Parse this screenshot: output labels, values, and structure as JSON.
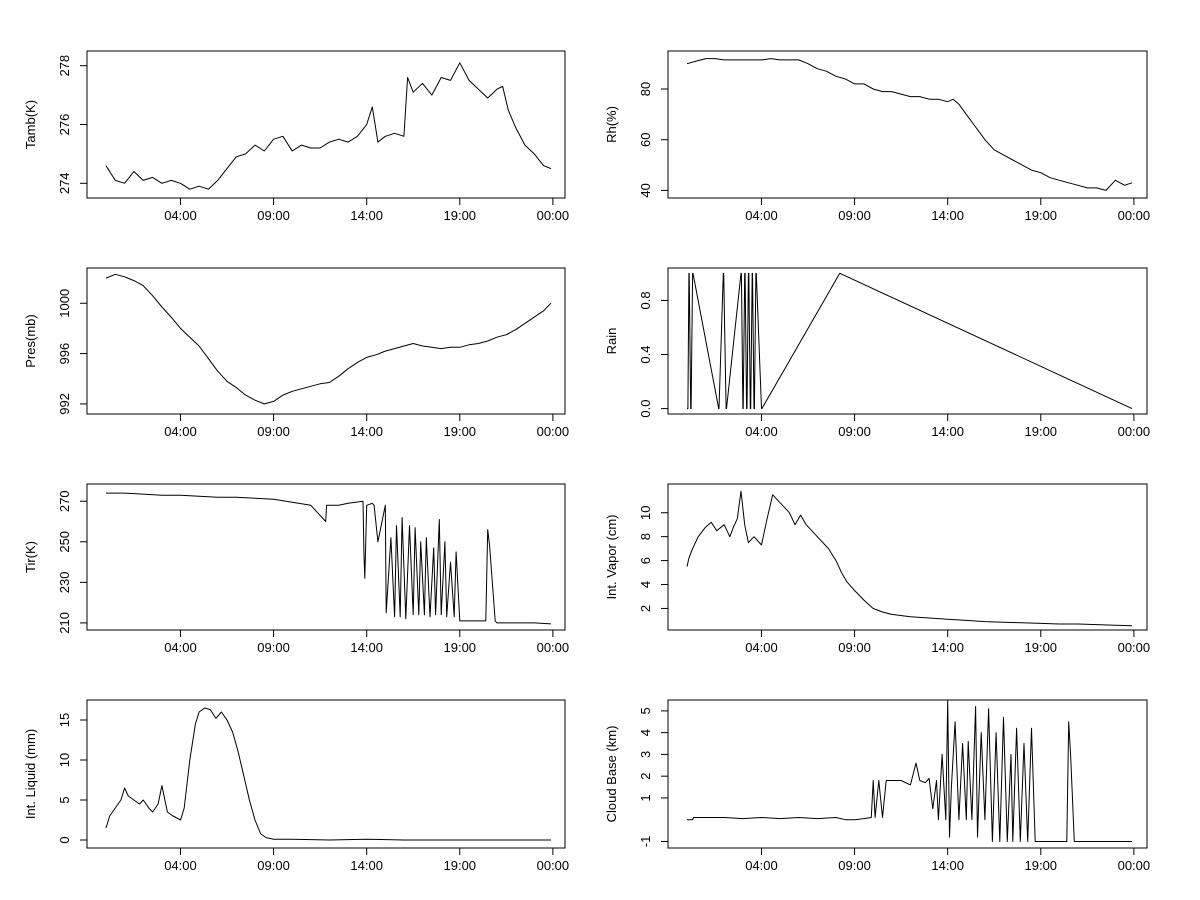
{
  "chart_data": [
    {
      "type": "line",
      "ylabel": "Tamb(K)",
      "xticks": [
        "04:00",
        "09:00",
        "14:00",
        "19:00",
        "00:00"
      ],
      "yticks": [
        274,
        276,
        278
      ],
      "ylim": [
        273.5,
        278.5
      ],
      "x": [
        0.0,
        0.5,
        1.0,
        1.5,
        2.0,
        2.5,
        3.0,
        3.5,
        4.0,
        4.5,
        5.0,
        5.5,
        6.0,
        6.5,
        7.0,
        7.5,
        8.0,
        8.5,
        9.0,
        9.5,
        10.0,
        10.5,
        11.0,
        11.5,
        12.0,
        12.5,
        13.0,
        13.5,
        14.0,
        14.3,
        14.6,
        15.0,
        15.5,
        16.0,
        16.2,
        16.5,
        17.0,
        17.5,
        18.0,
        18.5,
        19.0,
        19.5,
        20.0,
        20.5,
        21.0,
        21.3,
        21.6,
        22.0,
        22.5,
        23.0,
        23.5,
        23.9
      ],
      "values": [
        274.6,
        274.1,
        274.0,
        274.4,
        274.1,
        274.2,
        274.0,
        274.1,
        274.0,
        273.8,
        273.9,
        273.8,
        274.1,
        274.5,
        274.9,
        275.0,
        275.3,
        275.1,
        275.5,
        275.6,
        275.1,
        275.3,
        275.2,
        275.2,
        275.4,
        275.5,
        275.4,
        275.6,
        276.0,
        276.6,
        275.4,
        275.6,
        275.7,
        275.6,
        277.6,
        277.1,
        277.4,
        277.0,
        277.6,
        277.5,
        278.1,
        277.5,
        277.2,
        276.9,
        277.2,
        277.3,
        276.5,
        275.9,
        275.3,
        275.0,
        274.6,
        274.5
      ]
    },
    {
      "type": "line",
      "ylabel": "Rh(%)",
      "xticks": [
        "04:00",
        "09:00",
        "14:00",
        "19:00",
        "00:00"
      ],
      "yticks": [
        40,
        60,
        80
      ],
      "ylim": [
        37,
        95
      ],
      "x": [
        0.0,
        0.5,
        1.0,
        1.5,
        2.0,
        3.0,
        4.0,
        4.5,
        5.0,
        6.0,
        6.5,
        7.0,
        7.5,
        8.0,
        8.5,
        9.0,
        9.5,
        10.0,
        10.5,
        11.0,
        11.5,
        12.0,
        12.5,
        13.0,
        13.5,
        14.0,
        14.3,
        14.6,
        15.0,
        15.5,
        16.0,
        16.5,
        17.0,
        17.5,
        18.0,
        18.5,
        19.0,
        19.5,
        20.0,
        20.5,
        21.0,
        21.5,
        22.0,
        22.5,
        23.0,
        23.5,
        23.9
      ],
      "values": [
        90,
        91,
        92,
        92,
        91.5,
        91.5,
        91.5,
        92,
        91.5,
        91.5,
        90,
        88,
        87,
        85,
        84,
        82,
        82,
        80,
        79,
        79,
        78,
        77,
        77,
        76,
        76,
        75,
        76,
        74,
        70,
        65,
        60,
        56,
        54,
        52,
        50,
        48,
        47,
        45,
        44,
        43,
        42,
        41,
        41,
        40,
        44,
        42,
        43
      ]
    },
    {
      "type": "line",
      "ylabel": "Pres(mb)",
      "xticks": [
        "04:00",
        "09:00",
        "14:00",
        "19:00",
        "00:00"
      ],
      "yticks": [
        992,
        996,
        1000
      ],
      "ylim": [
        991.2,
        1002.8
      ],
      "x": [
        0.0,
        0.5,
        1.0,
        1.5,
        2.0,
        2.5,
        3.0,
        3.5,
        4.0,
        4.5,
        5.0,
        5.5,
        6.0,
        6.5,
        7.0,
        7.5,
        8.0,
        8.5,
        9.0,
        9.5,
        10.0,
        10.5,
        11.0,
        11.5,
        12.0,
        12.5,
        13.0,
        13.5,
        14.0,
        14.5,
        15.0,
        15.5,
        16.0,
        16.5,
        17.0,
        17.5,
        18.0,
        18.5,
        19.0,
        19.5,
        20.0,
        20.5,
        21.0,
        21.5,
        22.0,
        22.5,
        23.0,
        23.5,
        23.9
      ],
      "values": [
        1002.0,
        1002.3,
        1002.1,
        1001.8,
        1001.4,
        1000.6,
        999.7,
        998.9,
        998.0,
        997.3,
        996.6,
        995.6,
        994.6,
        993.8,
        993.3,
        992.7,
        992.3,
        992.0,
        992.2,
        992.7,
        993.0,
        993.2,
        993.4,
        993.6,
        993.7,
        994.2,
        994.8,
        995.3,
        995.7,
        995.9,
        996.2,
        996.4,
        996.6,
        996.8,
        996.6,
        996.5,
        996.4,
        996.5,
        996.5,
        996.7,
        996.8,
        997.0,
        997.3,
        997.5,
        997.9,
        998.4,
        998.9,
        999.4,
        1000.0
      ]
    },
    {
      "type": "line",
      "ylabel": "Rain",
      "xticks": [
        "04:00",
        "09:00",
        "14:00",
        "19:00",
        "00:00"
      ],
      "yticks": [
        0.0,
        0.4,
        0.8
      ],
      "yticklabels": [
        "0.0",
        "0.4",
        "0.8"
      ],
      "ylim": [
        -0.04,
        1.04
      ],
      "step": true,
      "x": [
        0.0,
        0.05,
        0.1,
        0.12,
        0.2,
        0.22,
        0.3,
        0.32,
        1.7,
        1.72,
        1.95,
        1.97,
        2.1,
        2.12,
        2.9,
        2.92,
        3.0,
        3.02,
        3.1,
        3.12,
        3.2,
        3.22,
        3.3,
        3.32,
        3.4,
        3.42,
        3.5,
        3.52,
        3.6,
        3.62,
        3.7,
        3.72,
        4.0,
        4.02,
        8.2,
        8.22,
        23.9
      ],
      "values": [
        0,
        0,
        1,
        1,
        0,
        0,
        1,
        1,
        0,
        0,
        1,
        1,
        0,
        0,
        1,
        1,
        0,
        0,
        1,
        1,
        0,
        0,
        1,
        1,
        0,
        0,
        1,
        1,
        0,
        0,
        1,
        1,
        0,
        0,
        1,
        1,
        0
      ]
    },
    {
      "type": "line",
      "ylabel": "Tir(K)",
      "xticks": [
        "04:00",
        "09:00",
        "14:00",
        "19:00",
        "00:00"
      ],
      "yticks": [
        210,
        230,
        250,
        270
      ],
      "ylim": [
        206.5,
        278.5
      ],
      "x": [
        0.0,
        1.0,
        2.0,
        3.0,
        4.0,
        5.0,
        6.0,
        7.0,
        8.0,
        9.0,
        10.0,
        11.0,
        11.8,
        11.85,
        11.9,
        12.5,
        13.0,
        13.8,
        13.85,
        13.9,
        14.0,
        14.3,
        14.4,
        14.6,
        15.0,
        15.05,
        15.3,
        15.5,
        15.6,
        15.8,
        15.9,
        16.1,
        16.3,
        16.5,
        16.6,
        16.8,
        16.9,
        17.1,
        17.2,
        17.4,
        17.6,
        17.7,
        17.9,
        18.0,
        18.2,
        18.3,
        18.5,
        18.7,
        18.8,
        19.0,
        19.2,
        19.5,
        20.0,
        20.4,
        20.5,
        20.6,
        20.9,
        21.0,
        22.0,
        23.0,
        23.9
      ],
      "values": [
        274,
        274,
        273.5,
        273,
        273,
        272.5,
        272,
        272,
        271.5,
        271,
        269.5,
        268,
        260,
        268,
        268,
        268,
        269,
        270,
        245,
        232,
        268,
        269,
        268,
        250,
        268,
        215,
        252,
        213,
        258,
        213,
        262,
        212,
        258,
        214,
        257,
        214,
        250,
        214,
        252,
        213,
        247,
        214,
        261,
        214,
        250,
        213,
        240,
        213,
        245,
        211,
        211,
        211,
        211,
        211,
        256,
        248,
        211,
        210,
        210,
        210,
        209.5
      ]
    },
    {
      "type": "line",
      "ylabel": "Int. Vapor (cm)",
      "xticks": [
        "04:00",
        "09:00",
        "14:00",
        "19:00",
        "00:00"
      ],
      "yticks": [
        2,
        4,
        6,
        8,
        10
      ],
      "ylim": [
        0.2,
        12.4
      ],
      "x": [
        0.0,
        0.1,
        0.3,
        0.6,
        1.0,
        1.3,
        1.6,
        2.0,
        2.3,
        2.5,
        2.7,
        2.9,
        3.1,
        3.3,
        3.6,
        4.0,
        4.3,
        4.6,
        4.9,
        5.2,
        5.5,
        5.8,
        6.1,
        6.4,
        6.7,
        7.0,
        7.3,
        7.6,
        8.0,
        8.3,
        8.6,
        9.0,
        9.5,
        10.0,
        10.5,
        11.0,
        12.0,
        13.0,
        14.0,
        15.0,
        16.0,
        17.0,
        18.0,
        19.0,
        20.0,
        21.0,
        22.0,
        23.0,
        23.9
      ],
      "values": [
        5.5,
        6.2,
        7.0,
        8.0,
        8.8,
        9.2,
        8.5,
        9.0,
        8.0,
        8.8,
        9.5,
        11.8,
        9.0,
        7.5,
        8.0,
        7.3,
        9.5,
        11.5,
        11.0,
        10.5,
        10.0,
        9.0,
        9.8,
        9.0,
        8.5,
        8.0,
        7.5,
        7.0,
        6.0,
        5.0,
        4.2,
        3.5,
        2.7,
        2.0,
        1.7,
        1.5,
        1.3,
        1.2,
        1.1,
        1.0,
        0.9,
        0.85,
        0.8,
        0.75,
        0.7,
        0.7,
        0.65,
        0.6,
        0.55
      ]
    },
    {
      "type": "line",
      "ylabel": "Int. Liquid (mm)",
      "xticks": [
        "04:00",
        "09:00",
        "14:00",
        "19:00",
        "00:00"
      ],
      "yticks": [
        0,
        5,
        10,
        15
      ],
      "ylim": [
        -1,
        17.5
      ],
      "x": [
        0.0,
        0.2,
        0.5,
        0.8,
        1.0,
        1.2,
        1.5,
        1.8,
        2.0,
        2.3,
        2.5,
        2.8,
        3.0,
        3.3,
        3.6,
        4.0,
        4.2,
        4.5,
        4.8,
        5.0,
        5.3,
        5.6,
        5.9,
        6.2,
        6.5,
        6.8,
        7.1,
        7.4,
        7.7,
        8.0,
        8.3,
        8.6,
        9.0,
        10.0,
        12.0,
        14.0,
        16.0,
        18.0,
        20.0,
        22.0,
        23.9
      ],
      "values": [
        1.5,
        3.0,
        4.0,
        5.0,
        6.5,
        5.5,
        5.0,
        4.5,
        5.0,
        4.0,
        3.5,
        4.5,
        6.8,
        3.5,
        3.0,
        2.5,
        4.0,
        10.0,
        14.5,
        16.0,
        16.5,
        16.3,
        15.2,
        16.0,
        15.0,
        13.5,
        11.0,
        8.0,
        5.0,
        2.5,
        0.8,
        0.3,
        0.1,
        0.1,
        0.0,
        0.1,
        0.0,
        0.0,
        0.0,
        0.0,
        0.0
      ]
    },
    {
      "type": "line",
      "ylabel": "Cloud Base (km)",
      "xticks": [
        "04:00",
        "09:00",
        "14:00",
        "19:00",
        "00:00"
      ],
      "yticks": [
        -1,
        1,
        2,
        3,
        4,
        5
      ],
      "yticklabels": [
        "-1",
        "1",
        "2",
        "3",
        "4",
        "5"
      ],
      "ylim": [
        -1.3,
        5.5
      ],
      "x": [
        0.0,
        0.3,
        0.35,
        1.0,
        2.0,
        3.0,
        4.0,
        5.0,
        6.0,
        7.0,
        8.0,
        8.5,
        9.0,
        9.5,
        9.9,
        10.0,
        10.1,
        10.3,
        10.5,
        10.7,
        11.0,
        11.5,
        12.0,
        12.3,
        12.5,
        12.8,
        13.0,
        13.2,
        13.4,
        13.5,
        13.7,
        13.9,
        14.0,
        14.1,
        14.2,
        14.4,
        14.6,
        14.8,
        15.0,
        15.1,
        15.3,
        15.5,
        15.6,
        15.8,
        16.0,
        16.2,
        16.4,
        16.6,
        16.8,
        17.0,
        17.2,
        17.4,
        17.5,
        17.7,
        17.9,
        18.1,
        18.3,
        18.5,
        18.7,
        19.0,
        20.0,
        20.4,
        20.5,
        20.6,
        20.8,
        21.0,
        22.0,
        23.0,
        23.9
      ],
      "values": [
        0.0,
        0.0,
        0.1,
        0.1,
        0.1,
        0.05,
        0.1,
        0.05,
        0.1,
        0.05,
        0.1,
        0.0,
        0.0,
        0.05,
        0.1,
        1.8,
        0.1,
        1.8,
        0.1,
        1.8,
        1.8,
        1.8,
        1.6,
        2.6,
        1.8,
        1.7,
        1.9,
        0.5,
        1.8,
        0.0,
        3.0,
        0.0,
        5.5,
        -0.8,
        1.5,
        4.5,
        0.0,
        3.5,
        0.0,
        3.6,
        0.0,
        5.2,
        -0.8,
        4.0,
        0.0,
        5.1,
        -1.0,
        4.0,
        -1.0,
        4.7,
        -1.0,
        3.0,
        -1.0,
        4.2,
        -1.0,
        3.5,
        -1.0,
        4.2,
        -1.0,
        -1.0,
        -1.0,
        -1.0,
        4.5,
        3.0,
        -1.0,
        -1.0,
        -1.0,
        -1.0,
        -1.0
      ]
    }
  ]
}
